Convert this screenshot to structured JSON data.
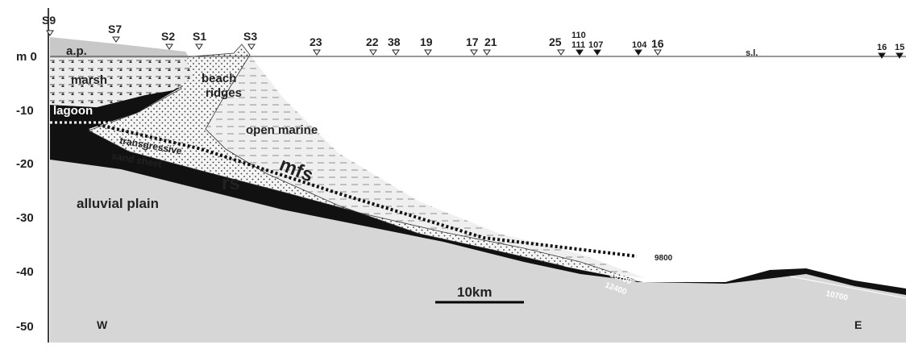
{
  "depth_labels": [
    "m 0",
    "-10",
    "-20",
    "-30",
    "-40",
    "-50"
  ],
  "cores": [
    "S9",
    "S7",
    "S2",
    "S1",
    "S3",
    "23",
    "22",
    "38",
    "19",
    "17",
    "21",
    "25",
    "110",
    "111",
    "107",
    "104",
    "16",
    "16",
    "15"
  ],
  "units": {
    "ap": "a.p.",
    "marsh": "marsh",
    "beach": "beach",
    "ridges": "ridges",
    "lagoon": "lagoon",
    "open_marine": "open marine",
    "transgressive": "transgressive",
    "sand_sheet": "sand sheet",
    "mfs": "mfs",
    "rs": "rs",
    "alluvial": "alluvial plain"
  },
  "sea_level": "s.l.",
  "ages": [
    "10700",
    "12400",
    "9800",
    "10700"
  ],
  "scale": "10km",
  "west": "W",
  "east": "E"
}
